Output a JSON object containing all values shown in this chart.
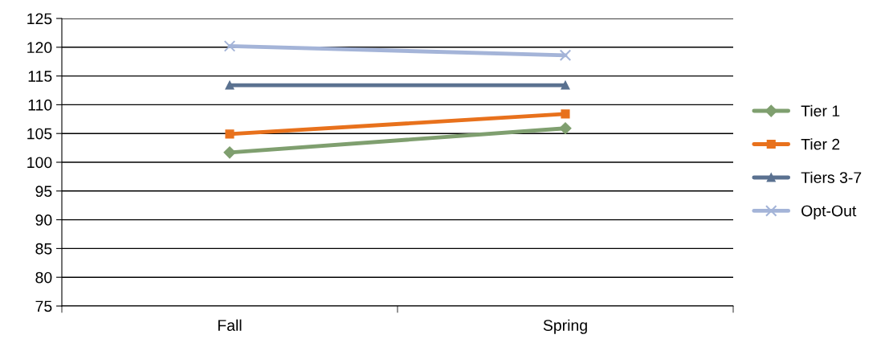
{
  "chart_data": {
    "type": "line",
    "categories": [
      "Fall",
      "Spring"
    ],
    "series": [
      {
        "name": "Tier 1",
        "color": "#7f9f6f",
        "marker": "diamond",
        "values": [
          101.7,
          105.9
        ]
      },
      {
        "name": "Tier 2",
        "color": "#e8711c",
        "marker": "square",
        "values": [
          104.9,
          108.4
        ]
      },
      {
        "name": "Tiers 3-7",
        "color": "#5a7190",
        "marker": "triangle",
        "values": [
          113.4,
          113.4
        ]
      },
      {
        "name": "Opt-Out",
        "color": "#a4b4d8",
        "marker": "cross",
        "values": [
          120.2,
          118.6
        ]
      }
    ],
    "ylim": [
      75,
      125
    ],
    "yticks": [
      75,
      80,
      85,
      90,
      95,
      100,
      105,
      110,
      115,
      120,
      125
    ],
    "grid": "y",
    "legend": "right",
    "line_style": "solid"
  }
}
